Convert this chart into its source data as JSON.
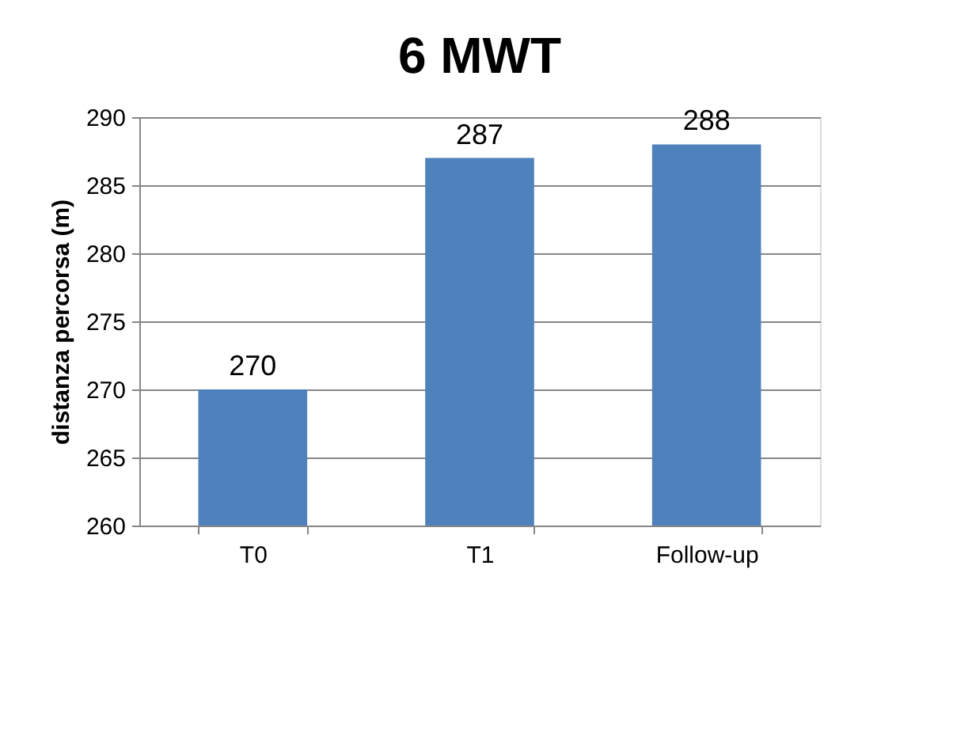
{
  "chart_data": {
    "type": "bar",
    "title": "6 MWT",
    "ylabel": "distanza percorsa (m)",
    "categories": [
      "T0",
      "T1",
      "Follow-up"
    ],
    "series": [
      {
        "color": "#4f81bd",
        "values": [
          270,
          287,
          288
        ]
      }
    ],
    "ylim": [
      260,
      290
    ],
    "yticks": [
      260,
      265,
      270,
      275,
      280,
      285,
      290
    ],
    "grid": "y",
    "data_labels": true,
    "legend": false
  }
}
